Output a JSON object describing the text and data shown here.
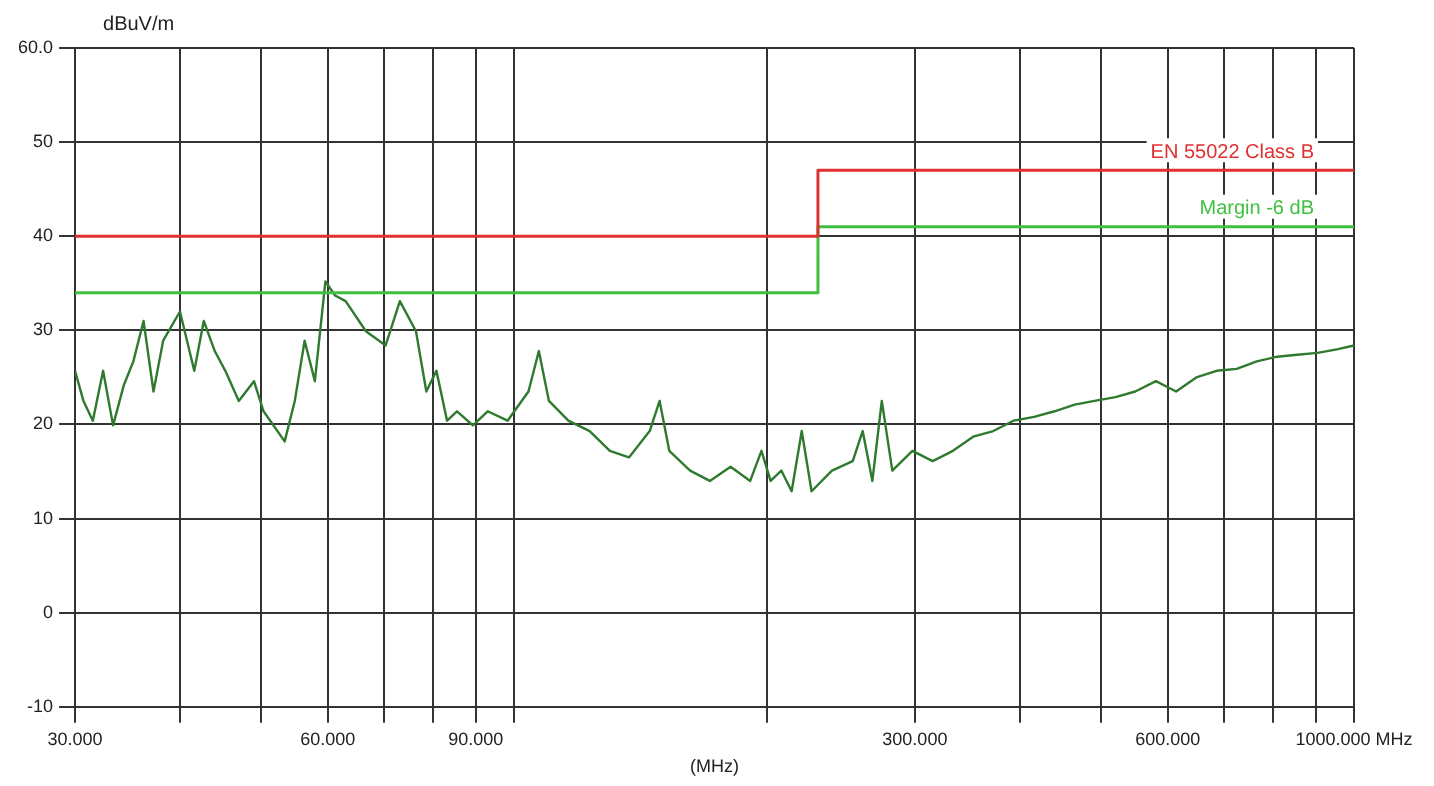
{
  "chart_data": {
    "type": "line",
    "ylabel": "dBuV/m",
    "xlabel": "(MHz)",
    "log": "x",
    "grid": true,
    "legend": false,
    "marker": "none",
    "line_style": "solid",
    "xlim": [
      30,
      1000
    ],
    "ylim": [
      -10,
      60
    ],
    "xticks": [
      {
        "value": 30,
        "label": "30.000"
      },
      {
        "value": 40,
        "label": null
      },
      {
        "value": 50,
        "label": null
      },
      {
        "value": 60,
        "label": "60.000"
      },
      {
        "value": 70,
        "label": null
      },
      {
        "value": 80,
        "label": null
      },
      {
        "value": 90,
        "label": "90.000"
      },
      {
        "value": 100,
        "label": null
      },
      {
        "value": 200,
        "label": null
      },
      {
        "value": 300,
        "label": "300.000"
      },
      {
        "value": 400,
        "label": null
      },
      {
        "value": 500,
        "label": null
      },
      {
        "value": 600,
        "label": "600.000"
      },
      {
        "value": 700,
        "label": null
      },
      {
        "value": 800,
        "label": null
      },
      {
        "value": 900,
        "label": null
      },
      {
        "value": 1000,
        "label": "1000.000 MHz"
      }
    ],
    "yticks": [
      -10,
      0,
      10,
      20,
      30,
      40,
      50,
      {
        "value": 60,
        "label": "60.0"
      }
    ],
    "series": [
      {
        "name": "EN 55022 Class B",
        "color": "#e03030",
        "x": [
          30,
          230,
          230,
          1000
        ],
        "values": [
          40,
          40,
          47,
          47
        ]
      },
      {
        "name": "Margin -6 dB",
        "color": "#40c040",
        "x": [
          30,
          230,
          230,
          1000
        ],
        "values": [
          34,
          34,
          41,
          41
        ]
      },
      {
        "color": "#2f7a2f",
        "x": [
          30,
          30.7,
          31.5,
          32.4,
          33.3,
          34.3,
          35.2,
          36.2,
          37.2,
          38.2,
          40,
          41.6,
          42.7,
          44,
          45.3,
          47,
          49,
          50.3,
          53.3,
          54.8,
          56.3,
          57.9,
          59.6,
          61.2,
          63,
          66.6,
          70.3,
          73.1,
          76.4,
          78.6,
          80.8,
          83.2,
          85.5,
          89.3,
          93,
          98.2,
          104,
          107,
          110,
          116,
          123,
          130,
          137,
          145,
          149,
          153,
          162,
          171,
          181,
          191,
          197,
          202,
          208,
          214,
          220,
          226,
          239,
          253,
          260,
          267,
          274,
          282,
          298,
          315,
          333,
          352,
          372,
          393,
          416,
          440,
          465,
          491,
          520,
          549,
          581,
          614,
          649,
          686,
          725,
          766,
          810,
          856,
          905,
          957,
          1000
        ],
        "values": [
          25.7,
          22.5,
          20.4,
          25.7,
          19.9,
          24.2,
          26.7,
          31,
          23.5,
          28.9,
          32,
          25.7,
          31,
          27.8,
          25.7,
          22.5,
          24.6,
          21.4,
          18.2,
          22.5,
          28.9,
          24.6,
          35.2,
          33.7,
          33.1,
          29.9,
          28.4,
          33.1,
          29.9,
          23.5,
          25.7,
          20.4,
          21.4,
          19.9,
          21.4,
          20.4,
          23.5,
          27.8,
          22.5,
          20.4,
          19.3,
          17.2,
          16.5,
          19.3,
          22.5,
          17.2,
          15.1,
          14,
          15.5,
          14,
          17.2,
          14,
          15.1,
          12.9,
          19.3,
          12.9,
          15.1,
          16.1,
          19.3,
          14,
          22.5,
          15.1,
          17.2,
          16.1,
          17.2,
          18.7,
          19.3,
          20.4,
          20.8,
          21.4,
          22.1,
          22.5,
          22.9,
          23.5,
          24.6,
          23.5,
          25,
          25.7,
          25.9,
          26.7,
          27.2,
          27.4,
          27.6,
          28,
          28.4
        ]
      }
    ]
  }
}
